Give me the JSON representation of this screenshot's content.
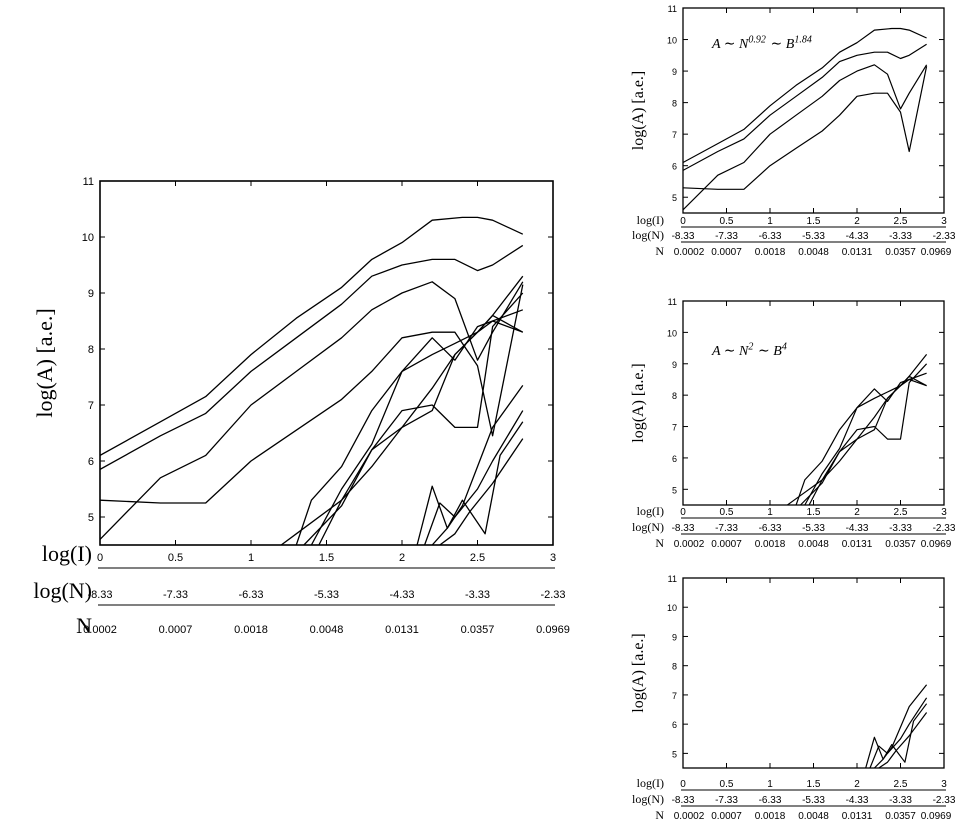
{
  "chart_data": [
    {
      "type": "line",
      "panel": "main",
      "title": "",
      "ylabel": "log(A) [a.e.]",
      "xlim": [
        0,
        3
      ],
      "ylim": [
        4.5,
        11
      ],
      "yticks": [
        "5",
        "6",
        "7",
        "8",
        "9",
        "10",
        "11"
      ],
      "axis_rows": [
        {
          "label": "log(I)",
          "ticks": [
            "0",
            "0.5",
            "1",
            "1.5",
            "2",
            "2.5",
            "3"
          ]
        },
        {
          "label": "log(N)",
          "ticks": [
            "-8.33",
            "-7.33",
            "-6.33",
            "-5.33",
            "-4.33",
            "-3.33",
            "-2.33"
          ]
        },
        {
          "label": "N",
          "ticks": [
            "0.0002",
            "0.0007",
            "0.0018",
            "0.0048",
            "0.0131",
            "0.0357",
            "0.0969"
          ]
        }
      ],
      "series": [
        {
          "x": [
            0,
            0.4,
            0.7,
            1,
            1.3,
            1.6,
            1.8,
            2,
            2.2,
            2.4,
            2.5,
            2.6,
            2.8
          ],
          "y": [
            6.1,
            6.7,
            7.15,
            7.9,
            8.55,
            9.1,
            9.6,
            9.9,
            10.3,
            10.35,
            10.35,
            10.3,
            10.05
          ]
        },
        {
          "x": [
            0,
            0.4,
            0.7,
            1,
            1.3,
            1.6,
            1.8,
            2,
            2.2,
            2.35,
            2.5,
            2.6,
            2.8
          ],
          "y": [
            5.85,
            6.45,
            6.85,
            7.6,
            8.2,
            8.8,
            9.3,
            9.5,
            9.6,
            9.6,
            9.4,
            9.5,
            9.85
          ]
        },
        {
          "x": [
            0,
            0.4,
            0.7,
            1,
            1.3,
            1.6,
            1.8,
            2,
            2.2,
            2.35,
            2.5,
            2.6,
            2.8
          ],
          "y": [
            4.6,
            5.7,
            6.1,
            7,
            7.6,
            8.2,
            8.7,
            9,
            9.2,
            8.9,
            7.8,
            8.3,
            9.2
          ]
        },
        {
          "x": [
            0,
            0.4,
            0.7,
            1,
            1.3,
            1.6,
            1.8,
            2,
            2.2,
            2.35,
            2.5,
            2.6,
            2.8
          ],
          "y": [
            5.3,
            5.25,
            5.25,
            6,
            6.55,
            7.1,
            7.6,
            8.2,
            8.3,
            8.3,
            7.7,
            6.45,
            9.15
          ]
        },
        {
          "x": [
            1.2,
            1.3,
            1.6,
            1.8,
            2,
            2.2,
            2.35,
            2.5,
            2.6,
            2.8
          ],
          "y": [
            4.5,
            4.7,
            5.3,
            5.9,
            6.6,
            7.3,
            7.9,
            8.3,
            8.6,
            9.3
          ]
        },
        {
          "x": [
            1.3,
            1.4,
            1.6,
            1.8,
            2,
            2.2,
            2.35,
            2.5,
            2.6,
            2.8
          ],
          "y": [
            4.5,
            5.3,
            5.9,
            6.9,
            7.6,
            7.9,
            8.1,
            8.3,
            8.5,
            8.7
          ]
        },
        {
          "x": [
            1.45,
            1.6,
            1.8,
            2,
            2.2,
            2.35,
            2.5,
            2.6,
            2.8
          ],
          "y": [
            4.5,
            5.3,
            6.2,
            6.6,
            6.9,
            7.9,
            8.3,
            8.6,
            8.3
          ]
        },
        {
          "x": [
            1.4,
            1.6,
            1.8,
            2,
            2.2,
            2.35,
            2.5,
            2.6,
            2.8
          ],
          "y": [
            4.5,
            5.5,
            6.3,
            7.6,
            8.2,
            7.8,
            8.4,
            8.5,
            8.3
          ]
        },
        {
          "x": [
            1.35,
            1.6,
            1.8,
            2,
            2.2,
            2.35,
            2.5,
            2.6,
            2.8
          ],
          "y": [
            4.5,
            5.2,
            6.2,
            6.9,
            7.0,
            6.6,
            6.6,
            8.4,
            9.0
          ]
        },
        {
          "x": [
            2.1,
            2.2,
            2.3,
            2.4,
            2.5,
            2.6,
            2.8
          ],
          "y": [
            4.5,
            5.55,
            4.8,
            5.2,
            5.9,
            6.6,
            7.35
          ]
        },
        {
          "x": [
            2.15,
            2.25,
            2.35,
            2.5,
            2.6,
            2.8
          ],
          "y": [
            4.5,
            5.25,
            5.0,
            5.5,
            6.0,
            6.9
          ]
        },
        {
          "x": [
            2.2,
            2.3,
            2.4,
            2.55,
            2.65,
            2.8
          ],
          "y": [
            4.5,
            4.8,
            5.3,
            4.7,
            6.1,
            6.7
          ]
        },
        {
          "x": [
            2.25,
            2.35,
            2.45,
            2.6,
            2.8
          ],
          "y": [
            4.5,
            4.7,
            5.1,
            5.6,
            6.4
          ]
        }
      ]
    },
    {
      "type": "line",
      "panel": "top-right",
      "title": "",
      "annotation": "A ∼ N^0.92 ∼ B^1.84",
      "ylabel": "log(A) [a.e.]",
      "xlim": [
        0,
        3
      ],
      "ylim": [
        4.5,
        11
      ],
      "yticks": [
        "5",
        "6",
        "7",
        "8",
        "9",
        "10",
        "11"
      ],
      "axis_rows": [
        {
          "label": "log(I)",
          "ticks": [
            "0",
            "0.5",
            "1",
            "1.5",
            "2",
            "2.5",
            "3"
          ]
        },
        {
          "label": "log(N)",
          "ticks": [
            "-8.33",
            "-7.33",
            "-6.33",
            "-5.33",
            "-4.33",
            "-3.33",
            "-2.33"
          ]
        },
        {
          "label": "N",
          "ticks": [
            "0.0002",
            "0.0007",
            "0.0018",
            "0.0048",
            "0.0131",
            "0.0357",
            "0.0969"
          ]
        }
      ],
      "series": [
        {
          "x": [
            0,
            0.4,
            0.7,
            1,
            1.3,
            1.6,
            1.8,
            2,
            2.2,
            2.4,
            2.5,
            2.6,
            2.8
          ],
          "y": [
            6.1,
            6.7,
            7.15,
            7.9,
            8.55,
            9.1,
            9.6,
            9.9,
            10.3,
            10.35,
            10.35,
            10.3,
            10.05
          ]
        },
        {
          "x": [
            0,
            0.4,
            0.7,
            1,
            1.3,
            1.6,
            1.8,
            2,
            2.2,
            2.35,
            2.5,
            2.6,
            2.8
          ],
          "y": [
            5.85,
            6.45,
            6.85,
            7.6,
            8.2,
            8.8,
            9.3,
            9.5,
            9.6,
            9.6,
            9.4,
            9.5,
            9.85
          ]
        },
        {
          "x": [
            0,
            0.4,
            0.7,
            1,
            1.3,
            1.6,
            1.8,
            2,
            2.2,
            2.35,
            2.5,
            2.6,
            2.8
          ],
          "y": [
            4.6,
            5.7,
            6.1,
            7,
            7.6,
            8.2,
            8.7,
            9,
            9.2,
            8.9,
            7.8,
            8.3,
            9.2
          ]
        },
        {
          "x": [
            0,
            0.4,
            0.7,
            1,
            1.3,
            1.6,
            1.8,
            2,
            2.2,
            2.35,
            2.5,
            2.6,
            2.8
          ],
          "y": [
            5.3,
            5.25,
            5.25,
            6,
            6.55,
            7.1,
            7.6,
            8.2,
            8.3,
            8.3,
            7.7,
            6.45,
            9.15
          ]
        }
      ]
    },
    {
      "type": "line",
      "panel": "middle-right",
      "title": "",
      "annotation": "A ∼ N^2 ∼ B^4",
      "ylabel": "log(A) [a.e.]",
      "xlim": [
        0,
        3
      ],
      "ylim": [
        4.5,
        11
      ],
      "yticks": [
        "5",
        "6",
        "7",
        "8",
        "9",
        "10",
        "11"
      ],
      "axis_rows": [
        {
          "label": "log(I)",
          "ticks": [
            "0",
            "0.5",
            "1",
            "1.5",
            "2",
            "2.5",
            "3"
          ]
        },
        {
          "label": "log(N)",
          "ticks": [
            "-8.33",
            "-7.33",
            "-6.33",
            "-5.33",
            "-4.33",
            "-3.33",
            "-2.33"
          ]
        },
        {
          "label": "N",
          "ticks": [
            "0.0002",
            "0.0007",
            "0.0018",
            "0.0048",
            "0.0131",
            "0.0357",
            "0.0969"
          ]
        }
      ],
      "series": [
        {
          "x": [
            1.2,
            1.3,
            1.6,
            1.8,
            2,
            2.2,
            2.35,
            2.5,
            2.6,
            2.8
          ],
          "y": [
            4.5,
            4.7,
            5.3,
            5.9,
            6.6,
            7.3,
            7.9,
            8.3,
            8.6,
            9.3
          ]
        },
        {
          "x": [
            1.3,
            1.4,
            1.6,
            1.8,
            2,
            2.2,
            2.35,
            2.5,
            2.6,
            2.8
          ],
          "y": [
            4.5,
            5.3,
            5.9,
            6.9,
            7.6,
            7.9,
            8.1,
            8.3,
            8.5,
            8.7
          ]
        },
        {
          "x": [
            1.45,
            1.6,
            1.8,
            2,
            2.2,
            2.35,
            2.5,
            2.6,
            2.8
          ],
          "y": [
            4.5,
            5.3,
            6.2,
            6.6,
            6.9,
            7.9,
            8.3,
            8.6,
            8.3
          ]
        },
        {
          "x": [
            1.4,
            1.6,
            1.8,
            2,
            2.2,
            2.35,
            2.5,
            2.6,
            2.8
          ],
          "y": [
            4.5,
            5.5,
            6.3,
            7.6,
            8.2,
            7.8,
            8.4,
            8.5,
            8.3
          ]
        },
        {
          "x": [
            1.35,
            1.6,
            1.8,
            2,
            2.2,
            2.35,
            2.5,
            2.6,
            2.8
          ],
          "y": [
            4.5,
            5.2,
            6.2,
            6.9,
            7.0,
            6.6,
            6.6,
            8.4,
            9.0
          ]
        }
      ]
    },
    {
      "type": "line",
      "panel": "bottom-right",
      "title": "",
      "ylabel": "log(A) [a.e.]",
      "xlim": [
        0,
        3
      ],
      "ylim": [
        4.5,
        11
      ],
      "yticks": [
        "5",
        "6",
        "7",
        "8",
        "9",
        "10",
        "11"
      ],
      "axis_rows": [
        {
          "label": "log(I)",
          "ticks": [
            "0",
            "0.5",
            "1",
            "1.5",
            "2",
            "2.5",
            "3"
          ]
        },
        {
          "label": "log(N)",
          "ticks": [
            "-8.33",
            "-7.33",
            "-6.33",
            "-5.33",
            "-4.33",
            "-3.33",
            "-2.33"
          ]
        },
        {
          "label": "N",
          "ticks": [
            "0.0002",
            "0.0007",
            "0.0018",
            "0.0048",
            "0.0131",
            "0.0357",
            "0.0969"
          ]
        }
      ],
      "series": [
        {
          "x": [
            2.1,
            2.2,
            2.3,
            2.4,
            2.5,
            2.6,
            2.8
          ],
          "y": [
            4.5,
            5.55,
            4.8,
            5.2,
            5.9,
            6.6,
            7.35
          ]
        },
        {
          "x": [
            2.15,
            2.25,
            2.35,
            2.5,
            2.6,
            2.8
          ],
          "y": [
            4.5,
            5.25,
            5.0,
            5.5,
            6.0,
            6.9
          ]
        },
        {
          "x": [
            2.2,
            2.3,
            2.4,
            2.55,
            2.65,
            2.8
          ],
          "y": [
            4.5,
            4.8,
            5.3,
            4.7,
            6.1,
            6.7
          ]
        },
        {
          "x": [
            2.25,
            2.35,
            2.45,
            2.6,
            2.8
          ],
          "y": [
            4.5,
            4.7,
            5.1,
            5.6,
            6.4
          ]
        }
      ]
    }
  ]
}
